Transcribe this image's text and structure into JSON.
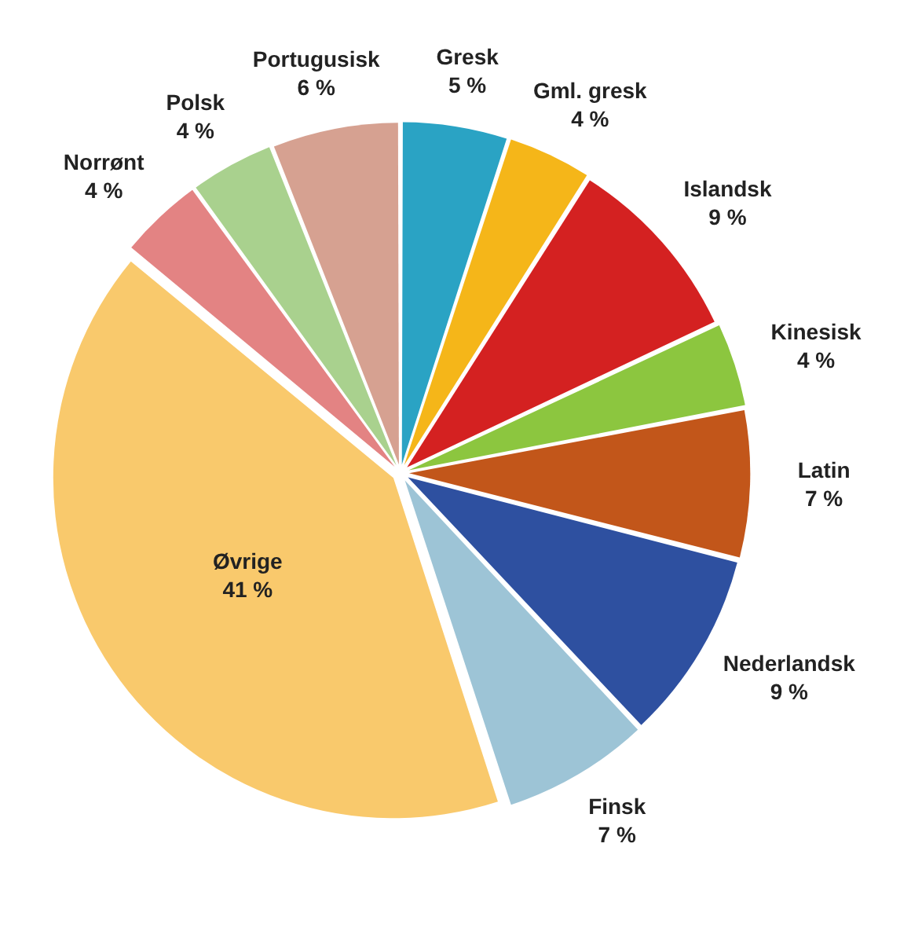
{
  "chart_data": {
    "type": "pie",
    "categories": [
      "Gresk",
      "Gml. gresk",
      "Islandsk",
      "Kinesisk",
      "Latin",
      "Nederlandsk",
      "Finsk",
      "Øvrige",
      "Norrønt",
      "Polsk",
      "Portugusisk"
    ],
    "values": [
      5,
      4,
      9,
      4,
      7,
      9,
      7,
      41,
      4,
      4,
      6
    ],
    "value_labels": [
      "5 %",
      "4 %",
      "9 %",
      "4 %",
      "7 %",
      "9 %",
      "7 %",
      "41 %",
      "4 %",
      "4 %",
      "6 %"
    ],
    "colors": [
      "#2aa3c4",
      "#f5b619",
      "#d42121",
      "#8cc63f",
      "#c2561a",
      "#2e50a0",
      "#9dc4d6",
      "#f9c96c",
      "#e38383",
      "#a9d18e",
      "#d6a191"
    ],
    "legend": false
  }
}
